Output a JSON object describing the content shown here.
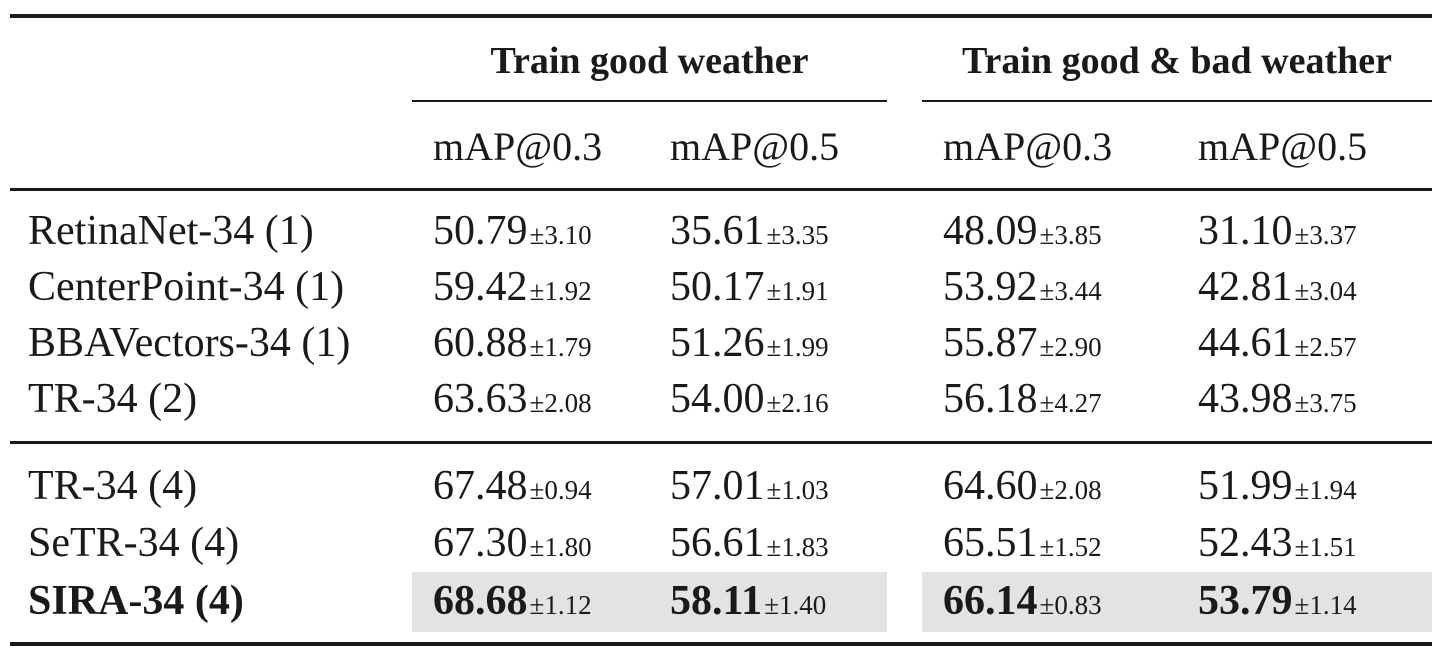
{
  "table": {
    "group_headers": [
      "Train good weather",
      "Train good & bad weather"
    ],
    "sub_headers": [
      "mAP@0.3",
      "mAP@0.5",
      "mAP@0.3",
      "mAP@0.5"
    ],
    "rows": [
      {
        "name": "RetinaNet-34 (1)",
        "cells": [
          {
            "value": "50.79",
            "std": "±3.10"
          },
          {
            "value": "35.61",
            "std": "±3.35"
          },
          {
            "value": "48.09",
            "std": "±3.85"
          },
          {
            "value": "31.10",
            "std": "±3.37"
          }
        ]
      },
      {
        "name": "CenterPoint-34 (1)",
        "cells": [
          {
            "value": "59.42",
            "std": "±1.92"
          },
          {
            "value": "50.17",
            "std": "±1.91"
          },
          {
            "value": "53.92",
            "std": "±3.44"
          },
          {
            "value": "42.81",
            "std": "±3.04"
          }
        ]
      },
      {
        "name": "BBAVectors-34 (1)",
        "cells": [
          {
            "value": "60.88",
            "std": "±1.79"
          },
          {
            "value": "51.26",
            "std": "±1.99"
          },
          {
            "value": "55.87",
            "std": "±2.90"
          },
          {
            "value": "44.61",
            "std": "±2.57"
          }
        ]
      },
      {
        "name": "TR-34 (2)",
        "cells": [
          {
            "value": "63.63",
            "std": "±2.08"
          },
          {
            "value": "54.00",
            "std": "±2.16"
          },
          {
            "value": "56.18",
            "std": "±4.27"
          },
          {
            "value": "43.98",
            "std": "±3.75"
          }
        ]
      },
      {
        "name": "TR-34 (4)",
        "cells": [
          {
            "value": "67.48",
            "std": "±0.94"
          },
          {
            "value": "57.01",
            "std": "±1.03"
          },
          {
            "value": "64.60",
            "std": "±2.08"
          },
          {
            "value": "51.99",
            "std": "±1.94"
          }
        ]
      },
      {
        "name": "SeTR-34 (4)",
        "cells": [
          {
            "value": "67.30",
            "std": "±1.80"
          },
          {
            "value": "56.61",
            "std": "±1.83"
          },
          {
            "value": "65.51",
            "std": "±1.52"
          },
          {
            "value": "52.43",
            "std": "±1.51"
          }
        ]
      },
      {
        "name": "SIRA-34 (4)",
        "cells": [
          {
            "value": "68.68",
            "std": "±1.12"
          },
          {
            "value": "58.11",
            "std": "±1.40"
          },
          {
            "value": "66.14",
            "std": "±0.83"
          },
          {
            "value": "53.79",
            "std": "±1.14"
          }
        ]
      }
    ]
  }
}
